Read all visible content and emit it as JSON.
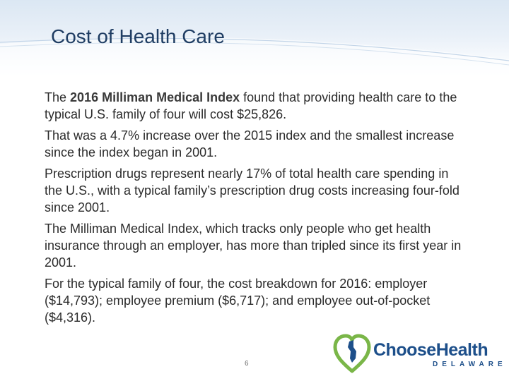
{
  "slide": {
    "title": "Cost of Health Care",
    "page_number": "6"
  },
  "paragraphs": [
    {
      "prefix": "The ",
      "bold": "2016 Milliman Medical Index",
      "suffix": " found that providing health care to the typical U.S. family of four will cost $25,826."
    },
    {
      "prefix": "That was a 4.7% increase over the 2015 index and the smallest increase since the index began in 2001.",
      "bold": "",
      "suffix": ""
    },
    {
      "prefix": "Prescription drugs represent nearly 17% of total health care spending in the U.S., with a typical family’s prescription drug costs increasing four-fold since 2001.",
      "bold": "",
      "suffix": ""
    },
    {
      "prefix": "The Milliman Medical Index, which tracks only people who get health insurance through an employer, has more than tripled since its first year in 2001.",
      "bold": "",
      "suffix": ""
    },
    {
      "prefix": "For the typical family of four, the cost breakdown for 2016: employer ($14,793); employee premium ($6,717); and employee out-of-pocket ($4,316).",
      "bold": "",
      "suffix": ""
    }
  ],
  "logo": {
    "word1": "Choose",
    "word2": "Health",
    "sub": "DELAWARE"
  },
  "colors": {
    "title": "#1f3d63",
    "body_text": "#2b2b2b",
    "logo_blue": "#1d4f8a",
    "logo_green": "#7ab648"
  }
}
